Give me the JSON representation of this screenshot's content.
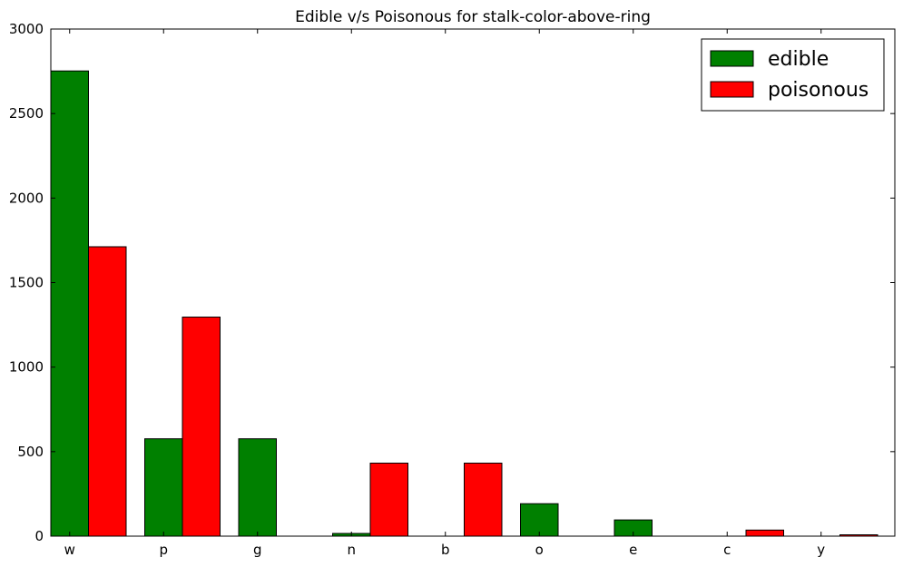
{
  "chart_data": {
    "type": "bar",
    "title": "Edible v/s Poisonous for stalk-color-above-ring",
    "xlabel": "",
    "ylabel": "",
    "categories": [
      "w",
      "p",
      "g",
      "n",
      "b",
      "o",
      "e",
      "c",
      "y"
    ],
    "series": [
      {
        "name": "edible",
        "color": "#008000",
        "values": [
          2752,
          576,
          576,
          16,
          0,
          192,
          96,
          0,
          0
        ]
      },
      {
        "name": "poisonous",
        "color": "#ff0000",
        "values": [
          1712,
          1296,
          0,
          432,
          432,
          0,
          0,
          36,
          8
        ]
      }
    ],
    "ylim": [
      0,
      3000
    ],
    "yticks": [
      "0",
      "500",
      "1000",
      "1500",
      "2000",
      "2500",
      "3000"
    ],
    "grid": false,
    "legend_position": "top-right"
  }
}
